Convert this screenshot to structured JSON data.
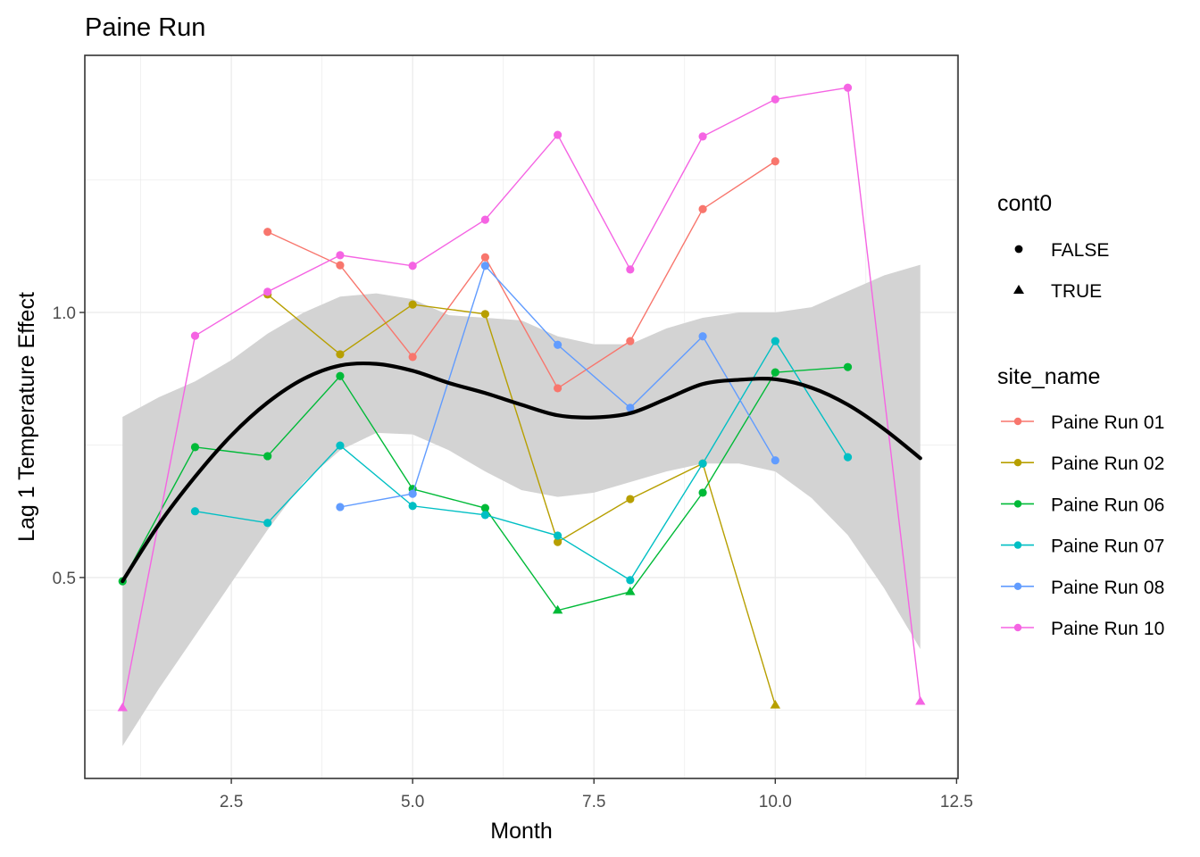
{
  "chart_data": {
    "type": "line",
    "title": "Paine Run",
    "xlabel": "Month",
    "ylabel": "Lag 1 Temperature Effect",
    "xlim": [
      0.48,
      12.52
    ],
    "ylim": [
      0.121,
      1.485
    ],
    "x_ticks": [
      2.5,
      5.0,
      7.5,
      10.0,
      12.5
    ],
    "x_tick_labels": [
      "2.5",
      "5.0",
      "7.5",
      "10.0",
      "12.5"
    ],
    "y_ticks": [
      0.5,
      1.0
    ],
    "y_tick_labels": [
      "0.5",
      "1.0"
    ],
    "grid": true,
    "legend_position": "right",
    "shape_legend": {
      "title": "cont0",
      "entries": [
        {
          "label": "FALSE",
          "shape": "circle"
        },
        {
          "label": "TRUE",
          "shape": "triangle"
        }
      ]
    },
    "color_legend_title": "site_name",
    "series": [
      {
        "name": "Paine Run 01",
        "color": "#F8766D",
        "x": [
          3,
          4,
          5,
          6,
          7,
          8,
          9,
          10
        ],
        "y": [
          1.152,
          1.089,
          0.916,
          1.104,
          0.857,
          0.946,
          1.195,
          1.285
        ],
        "cont0": [
          false,
          false,
          false,
          false,
          false,
          false,
          false,
          false
        ]
      },
      {
        "name": "Paine Run 02",
        "color": "#B79F00",
        "x": [
          3,
          4,
          5,
          6,
          7,
          8,
          9,
          10
        ],
        "y": [
          1.034,
          0.921,
          1.015,
          0.997,
          0.567,
          0.648,
          0.715,
          0.259
        ],
        "cont0": [
          false,
          false,
          false,
          false,
          false,
          false,
          false,
          true
        ]
      },
      {
        "name": "Paine Run 06",
        "color": "#00BA38",
        "x": [
          1,
          2,
          3,
          4,
          5,
          6,
          7,
          8,
          9,
          10,
          11
        ],
        "y": [
          0.493,
          0.746,
          0.729,
          0.88,
          0.667,
          0.631,
          0.438,
          0.473,
          0.66,
          0.887,
          0.897
        ],
        "cont0": [
          false,
          false,
          false,
          false,
          false,
          false,
          true,
          true,
          false,
          false,
          false
        ]
      },
      {
        "name": "Paine Run 07",
        "color": "#00BFC4",
        "x": [
          2,
          3,
          4,
          5,
          6,
          7,
          8,
          9,
          10,
          11
        ],
        "y": [
          0.625,
          0.603,
          0.749,
          0.635,
          0.618,
          0.579,
          0.495,
          0.715,
          0.946,
          0.727
        ],
        "cont0": [
          false,
          false,
          false,
          false,
          false,
          false,
          false,
          false,
          false,
          false
        ]
      },
      {
        "name": "Paine Run 08",
        "color": "#619CFF",
        "x": [
          4,
          5,
          6,
          7,
          8,
          9,
          10
        ],
        "y": [
          0.633,
          0.658,
          1.088,
          0.939,
          0.82,
          0.955,
          0.721
        ],
        "cont0": [
          false,
          false,
          false,
          false,
          false,
          false,
          false
        ]
      },
      {
        "name": "Paine Run 10",
        "color": "#F564E3",
        "x": [
          1,
          2,
          3,
          4,
          5,
          6,
          7,
          8,
          9,
          10,
          11,
          12
        ],
        "y": [
          0.254,
          0.956,
          1.039,
          1.108,
          1.088,
          1.175,
          1.335,
          1.081,
          1.332,
          1.402,
          1.424,
          0.266
        ],
        "cont0": [
          true,
          false,
          false,
          false,
          false,
          false,
          false,
          false,
          false,
          false,
          false,
          true
        ]
      }
    ],
    "smooth": {
      "color": "#000000",
      "ribbon_color": "#D3D3D3",
      "x": [
        1,
        1.5,
        2,
        2.5,
        3,
        3.5,
        4,
        4.5,
        5,
        5.5,
        6,
        6.5,
        7,
        7.5,
        8,
        8.5,
        9,
        9.5,
        10,
        10.5,
        11,
        11.5,
        12
      ],
      "y": [
        0.493,
        0.6,
        0.69,
        0.768,
        0.83,
        0.875,
        0.9,
        0.903,
        0.89,
        0.867,
        0.848,
        0.826,
        0.806,
        0.802,
        0.81,
        0.837,
        0.865,
        0.873,
        0.874,
        0.858,
        0.826,
        0.78,
        0.725
      ],
      "lower": [
        0.182,
        0.29,
        0.39,
        0.49,
        0.59,
        0.68,
        0.74,
        0.773,
        0.77,
        0.74,
        0.7,
        0.665,
        0.652,
        0.66,
        0.68,
        0.7,
        0.715,
        0.715,
        0.7,
        0.65,
        0.58,
        0.48,
        0.365
      ],
      "upper": [
        0.803,
        0.84,
        0.87,
        0.91,
        0.96,
        1.0,
        1.03,
        1.036,
        1.025,
        0.995,
        0.99,
        0.985,
        0.955,
        0.94,
        0.94,
        0.97,
        0.99,
        1.0,
        1.0,
        1.01,
        1.04,
        1.07,
        1.09
      ]
    }
  }
}
